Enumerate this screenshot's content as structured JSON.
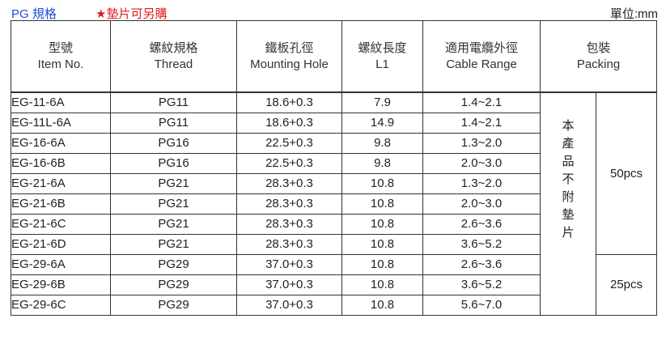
{
  "header": {
    "spec_label": "PG 規格",
    "washer_note": "★墊片可另購",
    "unit": "單位:mm"
  },
  "columns": [
    {
      "zh": "型號",
      "en": "Item No."
    },
    {
      "zh": "螺紋規格",
      "en": "Thread"
    },
    {
      "zh": "鐵板孔徑",
      "en": "Mounting Hole"
    },
    {
      "zh": "螺紋長度",
      "en": "L1"
    },
    {
      "zh": "適用電纜外徑",
      "en": "Cable Range"
    },
    {
      "zh": "包裝",
      "en": "Packing"
    }
  ],
  "rows": [
    {
      "item": "EG-11-6A",
      "thread": "PG11",
      "hole": "18.6+0.3",
      "l1": "7.9",
      "cable": "1.4~2.1"
    },
    {
      "item": "EG-11L-6A",
      "thread": "PG11",
      "hole": "18.6+0.3",
      "l1": "14.9",
      "cable": "1.4~2.1"
    },
    {
      "item": "EG-16-6A",
      "thread": "PG16",
      "hole": "22.5+0.3",
      "l1": "9.8",
      "cable": "1.3~2.0"
    },
    {
      "item": "EG-16-6B",
      "thread": "PG16",
      "hole": "22.5+0.3",
      "l1": "9.8",
      "cable": "2.0~3.0"
    },
    {
      "item": "EG-21-6A",
      "thread": "PG21",
      "hole": "28.3+0.3",
      "l1": "10.8",
      "cable": "1.3~2.0"
    },
    {
      "item": "EG-21-6B",
      "thread": "PG21",
      "hole": "28.3+0.3",
      "l1": "10.8",
      "cable": "2.0~3.0"
    },
    {
      "item": "EG-21-6C",
      "thread": "PG21",
      "hole": "28.3+0.3",
      "l1": "10.8",
      "cable": "2.6~3.6"
    },
    {
      "item": "EG-21-6D",
      "thread": "PG21",
      "hole": "28.3+0.3",
      "l1": "10.8",
      "cable": "3.6~5.2"
    },
    {
      "item": "EG-29-6A",
      "thread": "PG29",
      "hole": "37.0+0.3",
      "l1": "10.8",
      "cable": "2.6~3.6"
    },
    {
      "item": "EG-29-6B",
      "thread": "PG29",
      "hole": "37.0+0.3",
      "l1": "10.8",
      "cable": "3.6~5.2"
    },
    {
      "item": "EG-29-6C",
      "thread": "PG29",
      "hole": "37.0+0.3",
      "l1": "10.8",
      "cable": "5.6~7.0"
    }
  ],
  "packing_note": "本產品不附墊片",
  "packing_groups": [
    "50pcs",
    "25pcs"
  ]
}
